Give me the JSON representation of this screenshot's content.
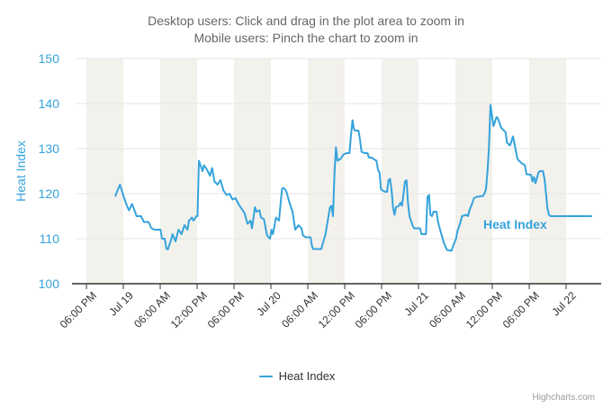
{
  "credits": {
    "label": "Highcharts.com"
  },
  "colors": {
    "accent_blue": "#35a3dc",
    "title_gray": "#666666",
    "axis_text": "#333333",
    "gridline": "#e6e6e6",
    "plot_band": "#f3f1ec",
    "axis_line": "#333333"
  },
  "chart_data": {
    "type": "line",
    "title": "Desktop users: Click and drag in the plot area to zoom in",
    "subtitle": "Mobile users: Pinch the chart to zoom in",
    "xlabel": "",
    "ylabel": "Heat Index",
    "ylim": [
      100,
      150
    ],
    "xlim": [
      -1.76,
      83.71
    ],
    "x_unit": "hours-after-first-tick(06:00 PM)",
    "grid": true,
    "legend_position": "bottom",
    "y_ticks": [
      150,
      140,
      130,
      120,
      110,
      100
    ],
    "x_ticks": [
      {
        "t": 0,
        "label": "06:00 PM"
      },
      {
        "t": 6,
        "label": "Jul 19"
      },
      {
        "t": 12,
        "label": "06:00 AM"
      },
      {
        "t": 18,
        "label": "12:00 PM"
      },
      {
        "t": 24,
        "label": "06:00 PM"
      },
      {
        "t": 30,
        "label": "Jul 20"
      },
      {
        "t": 36,
        "label": "06:00 AM"
      },
      {
        "t": 42,
        "label": "12:00 PM"
      },
      {
        "t": 48,
        "label": "06:00 PM"
      },
      {
        "t": 54,
        "label": "Jul 21"
      },
      {
        "t": 60,
        "label": "06:00 AM"
      },
      {
        "t": 66,
        "label": "12:00 PM"
      },
      {
        "t": 72,
        "label": "06:00 PM"
      },
      {
        "t": 78,
        "label": "Jul 22"
      }
    ],
    "plot_bands": [
      [
        0,
        6
      ],
      [
        12,
        18
      ],
      [
        24,
        30
      ],
      [
        36,
        42
      ],
      [
        48,
        54
      ],
      [
        60,
        66
      ],
      [
        72,
        78
      ]
    ],
    "series": [
      {
        "name": "Heat Index",
        "points": [
          [
            4.73,
            119.5
          ],
          [
            4.98,
            120.5
          ],
          [
            5.46,
            122
          ],
          [
            5.85,
            120.3
          ],
          [
            6.15,
            119
          ],
          [
            6.59,
            117.3
          ],
          [
            6.92,
            116.3
          ],
          [
            7.42,
            117.7
          ],
          [
            7.9,
            116
          ],
          [
            8.15,
            115
          ],
          [
            8.88,
            115
          ],
          [
            9.37,
            113.7
          ],
          [
            10.1,
            113.7
          ],
          [
            10.58,
            112.3
          ],
          [
            11.08,
            112
          ],
          [
            12.04,
            112
          ],
          [
            12.29,
            110
          ],
          [
            12.73,
            110
          ],
          [
            13.02,
            107.7
          ],
          [
            13.27,
            107.7
          ],
          [
            13.76,
            109.7
          ],
          [
            14,
            111
          ],
          [
            14.49,
            109.4
          ],
          [
            14.97,
            112
          ],
          [
            15.47,
            111
          ],
          [
            15.95,
            113
          ],
          [
            16.43,
            112
          ],
          [
            16.68,
            114
          ],
          [
            17.17,
            114.7
          ],
          [
            17.41,
            114
          ],
          [
            17.9,
            115
          ],
          [
            18.07,
            115
          ],
          [
            18.29,
            127.3
          ],
          [
            18.63,
            126
          ],
          [
            18.88,
            125
          ],
          [
            19.13,
            126.3
          ],
          [
            19.61,
            125.3
          ],
          [
            20.09,
            124
          ],
          [
            20.44,
            125.7
          ],
          [
            20.82,
            122.7
          ],
          [
            21.32,
            122
          ],
          [
            21.8,
            123
          ],
          [
            22.29,
            120.7
          ],
          [
            22.78,
            119.7
          ],
          [
            23.27,
            120
          ],
          [
            23.75,
            118.7
          ],
          [
            24.25,
            119
          ],
          [
            24.73,
            117.7
          ],
          [
            25.22,
            116.7
          ],
          [
            25.71,
            115.7
          ],
          [
            26.2,
            113.3
          ],
          [
            26.68,
            114
          ],
          [
            26.93,
            112.3
          ],
          [
            27.41,
            117
          ],
          [
            27.66,
            116
          ],
          [
            28.14,
            116.3
          ],
          [
            28.39,
            114.7
          ],
          [
            28.87,
            114.3
          ],
          [
            29.37,
            110.7
          ],
          [
            29.85,
            110
          ],
          [
            30.1,
            112
          ],
          [
            30.33,
            111
          ],
          [
            30.83,
            114.7
          ],
          [
            31.32,
            114
          ],
          [
            31.8,
            121
          ],
          [
            32.05,
            121.3
          ],
          [
            32.49,
            120.6
          ],
          [
            33.03,
            118
          ],
          [
            33.51,
            116
          ],
          [
            33.95,
            112
          ],
          [
            34.49,
            113
          ],
          [
            34.98,
            112.3
          ],
          [
            35.22,
            110.7
          ],
          [
            35.71,
            110.3
          ],
          [
            36.44,
            110.3
          ],
          [
            36.69,
            108.3
          ],
          [
            36.88,
            107.7
          ],
          [
            38.2,
            107.7
          ],
          [
            38.39,
            108.7
          ],
          [
            38.88,
            111
          ],
          [
            39.12,
            113
          ],
          [
            39.62,
            117
          ],
          [
            39.85,
            117.3
          ],
          [
            40.1,
            115
          ],
          [
            40.35,
            124.7
          ],
          [
            40.58,
            130.3
          ],
          [
            40.83,
            127.3
          ],
          [
            41.31,
            127.7
          ],
          [
            41.81,
            128.7
          ],
          [
            42.29,
            129
          ],
          [
            42.78,
            129
          ],
          [
            43.02,
            133
          ],
          [
            43.27,
            136.3
          ],
          [
            43.51,
            134.3
          ],
          [
            43.76,
            134
          ],
          [
            44.24,
            134
          ],
          [
            44.49,
            132
          ],
          [
            44.74,
            129.3
          ],
          [
            45.22,
            129
          ],
          [
            45.7,
            129
          ],
          [
            45.95,
            128
          ],
          [
            46.43,
            128
          ],
          [
            46.68,
            127.7
          ],
          [
            47.17,
            127.3
          ],
          [
            47.41,
            125.3
          ],
          [
            47.66,
            124.7
          ],
          [
            47.9,
            121
          ],
          [
            48.15,
            120.7
          ],
          [
            48.59,
            120.4
          ],
          [
            48.88,
            120.4
          ],
          [
            49.13,
            123
          ],
          [
            49.36,
            123.3
          ],
          [
            49.61,
            121
          ],
          [
            49.86,
            117
          ],
          [
            50.09,
            115.3
          ],
          [
            50.34,
            117
          ],
          [
            50.83,
            117.3
          ],
          [
            51.07,
            118
          ],
          [
            51.32,
            117.3
          ],
          [
            51.8,
            122.7
          ],
          [
            52.05,
            123
          ],
          [
            52.29,
            118
          ],
          [
            52.54,
            115
          ],
          [
            53.02,
            113
          ],
          [
            53.27,
            112.3
          ],
          [
            54.25,
            112.3
          ],
          [
            54.48,
            111
          ],
          [
            55.22,
            111
          ],
          [
            55.46,
            119.3
          ],
          [
            55.71,
            119.7
          ],
          [
            55.95,
            115.3
          ],
          [
            56.2,
            115
          ],
          [
            56.44,
            116
          ],
          [
            56.93,
            116
          ],
          [
            57.18,
            113.7
          ],
          [
            57.66,
            111.3
          ],
          [
            58.14,
            109
          ],
          [
            58.64,
            107.5
          ],
          [
            59.37,
            107.3
          ],
          [
            59.61,
            108.3
          ],
          [
            60.1,
            110
          ],
          [
            60.34,
            111.7
          ],
          [
            60.83,
            113.7
          ],
          [
            61.07,
            115
          ],
          [
            61.8,
            115.3
          ],
          [
            62.05,
            115
          ],
          [
            62.29,
            116.3
          ],
          [
            62.78,
            118
          ],
          [
            63.02,
            119
          ],
          [
            63.51,
            119.3
          ],
          [
            64.49,
            119.5
          ],
          [
            64.72,
            120
          ],
          [
            64.98,
            121
          ],
          [
            65.22,
            125
          ],
          [
            65.46,
            130.3
          ],
          [
            65.71,
            139.7
          ],
          [
            66.19,
            135
          ],
          [
            66.69,
            137
          ],
          [
            66.93,
            136.7
          ],
          [
            67.42,
            134.7
          ],
          [
            67.66,
            134.3
          ],
          [
            68.16,
            133.7
          ],
          [
            68.39,
            131.3
          ],
          [
            68.89,
            130.7
          ],
          [
            69.37,
            132.7
          ],
          [
            69.62,
            131
          ],
          [
            70.1,
            127.7
          ],
          [
            70.35,
            127.3
          ],
          [
            70.83,
            126.7
          ],
          [
            71.31,
            126.3
          ],
          [
            71.56,
            124.3
          ],
          [
            72.29,
            124.2
          ],
          [
            72.54,
            122.7
          ],
          [
            72.78,
            123.7
          ],
          [
            73.02,
            122.3
          ],
          [
            73.51,
            124.7
          ],
          [
            73.76,
            125
          ],
          [
            74.24,
            125
          ],
          [
            74.49,
            123.3
          ],
          [
            74.74,
            120
          ],
          [
            74.98,
            116.7
          ],
          [
            75.22,
            115.3
          ],
          [
            75.47,
            115
          ],
          [
            82.1,
            115
          ]
        ]
      }
    ]
  }
}
